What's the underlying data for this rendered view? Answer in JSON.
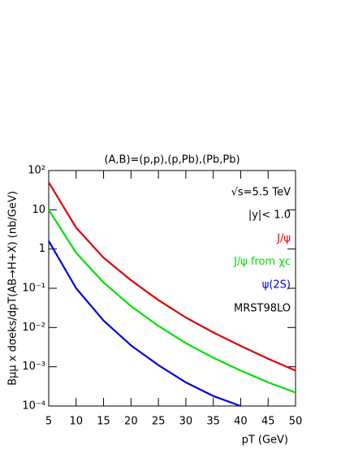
{
  "chart_data": {
    "type": "line",
    "title": "(A,B)=(p,p),(p,Pb),(Pb,Pb)",
    "x_label": "pT (GeV)",
    "y_label": "Bμμ x dσeks/dpT(AB→H+X) (nb/GeV)",
    "annotations": [
      "√s=5.5 TeV",
      "|y|< 1.0",
      "MRST98LO"
    ],
    "x": [
      5,
      10,
      15,
      20,
      25,
      30,
      35,
      40,
      45,
      50
    ],
    "series": [
      {
        "name": "J/ψ",
        "color": "#e00000",
        "values": [
          50,
          3.5,
          0.6,
          0.16,
          0.05,
          0.018,
          0.0075,
          0.0034,
          0.0016,
          0.0008
        ]
      },
      {
        "name": "J/ψ from χc",
        "color": "#00e000",
        "values": [
          10,
          0.8,
          0.14,
          0.035,
          0.011,
          0.004,
          0.0017,
          0.0008,
          0.0004,
          0.00022
        ]
      },
      {
        "name": "ψ(2S)",
        "color": "#0000e0",
        "values": [
          1.6,
          0.1,
          0.015,
          0.0035,
          0.0011,
          0.0004,
          0.00018,
          0.0001,
          null,
          null
        ]
      }
    ],
    "xlim": [
      5,
      50
    ],
    "xticks": [
      5,
      10,
      15,
      20,
      25,
      30,
      35,
      40,
      45,
      50
    ],
    "ylim": [
      0.0001,
      100
    ],
    "log_y": true,
    "yticks": [
      {
        "value": 100,
        "label": "10²"
      },
      10,
      1,
      {
        "value": 0.1,
        "label": "10⁻¹"
      },
      {
        "value": 0.01,
        "label": "10⁻²"
      },
      {
        "value": 0.001,
        "label": "10⁻³"
      },
      {
        "value": 0.0001,
        "label": "10⁻⁴"
      }
    ],
    "legend": "top-right"
  }
}
